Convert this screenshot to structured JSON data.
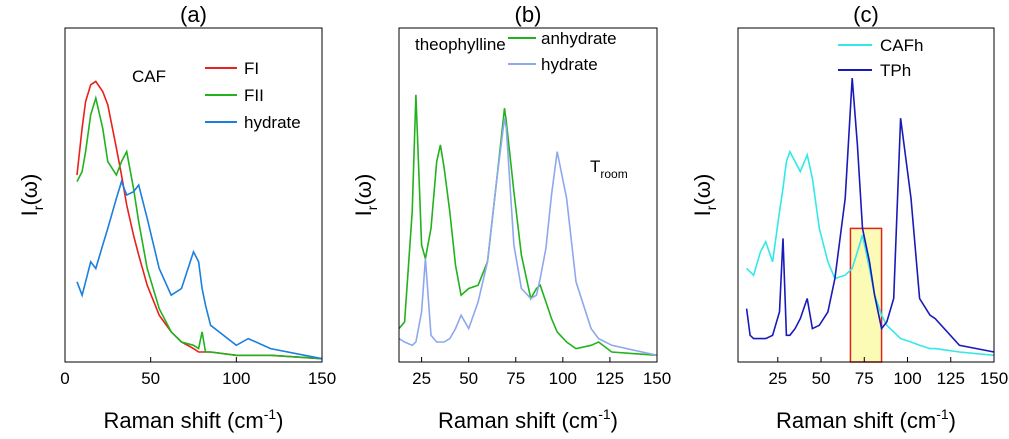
{
  "chart_data": [
    {
      "type": "line",
      "title": "(a)",
      "xlabel": "Raman shift (cm",
      "xlabel_sup": "-1",
      "xlabel_tail": ")",
      "ylabel": "I",
      "ylabel_sub": "r",
      "ylabel_tail": "(ω)",
      "annotation": "CAF",
      "xlim": [
        0,
        150
      ],
      "xticks": [
        0,
        50,
        100,
        150
      ],
      "ylim": [
        0,
        1
      ],
      "x": [
        7,
        10,
        12,
        15,
        18,
        22,
        25,
        30,
        33,
        36,
        40,
        43,
        48,
        55,
        62,
        68,
        75,
        78,
        80,
        82,
        85,
        100,
        107,
        120,
        150
      ],
      "series": [
        {
          "name": "FI",
          "color": "#e8211c",
          "values": [
            0.56,
            0.7,
            0.78,
            0.83,
            0.84,
            0.81,
            0.77,
            0.64,
            0.56,
            0.47,
            0.38,
            0.32,
            0.23,
            0.14,
            0.09,
            0.06,
            0.04,
            0.03,
            0.03,
            0.03,
            0.03,
            0.02,
            0.02,
            0.02,
            0.01
          ]
        },
        {
          "name": "FII",
          "color": "#22b21e",
          "values": [
            0.54,
            0.57,
            0.63,
            0.74,
            0.79,
            0.7,
            0.6,
            0.56,
            0.6,
            0.63,
            0.52,
            0.42,
            0.28,
            0.16,
            0.09,
            0.06,
            0.05,
            0.04,
            0.09,
            0.03,
            0.03,
            0.02,
            0.02,
            0.02,
            0.01
          ]
        },
        {
          "name": "hydrate",
          "color": "#1a7fe0",
          "values": [
            0.24,
            0.2,
            0.24,
            0.3,
            0.28,
            0.35,
            0.4,
            0.49,
            0.54,
            0.5,
            0.51,
            0.53,
            0.43,
            0.28,
            0.2,
            0.22,
            0.33,
            0.3,
            0.22,
            0.17,
            0.11,
            0.05,
            0.07,
            0.04,
            0.01
          ]
        }
      ]
    },
    {
      "type": "line",
      "title": "(b)",
      "xlabel": "Raman shift (cm",
      "xlabel_sup": "-1",
      "xlabel_tail": ")",
      "ylabel": "I",
      "ylabel_sub": "r",
      "ylabel_tail": "(ω)",
      "annotation": "theophylline",
      "temperature_label": "T",
      "temperature_sub": "room",
      "xlim": [
        13,
        150
      ],
      "xticks": [
        25,
        50,
        75,
        100,
        125,
        150
      ],
      "ylim": [
        0,
        1
      ],
      "x": [
        13,
        16,
        20,
        22,
        25,
        27,
        30,
        33,
        35,
        37,
        40,
        43,
        46,
        50,
        55,
        60,
        65,
        69,
        70,
        74,
        78,
        83,
        86,
        88,
        91,
        94,
        97,
        102,
        107,
        115,
        119,
        126,
        150
      ],
      "series": [
        {
          "name": "anhydrate",
          "color": "#22b21e",
          "values": [
            0.1,
            0.12,
            0.45,
            0.8,
            0.35,
            0.31,
            0.4,
            0.6,
            0.65,
            0.58,
            0.45,
            0.29,
            0.2,
            0.22,
            0.23,
            0.3,
            0.55,
            0.76,
            0.72,
            0.51,
            0.32,
            0.19,
            0.22,
            0.23,
            0.18,
            0.13,
            0.09,
            0.06,
            0.04,
            0.05,
            0.06,
            0.03,
            0.02
          ]
        },
        {
          "name": "hydrate",
          "color": "#8ea8ee",
          "values": [
            0.07,
            0.06,
            0.05,
            0.06,
            0.15,
            0.31,
            0.08,
            0.06,
            0.06,
            0.06,
            0.07,
            0.1,
            0.14,
            0.1,
            0.18,
            0.3,
            0.55,
            0.73,
            0.7,
            0.35,
            0.22,
            0.19,
            0.2,
            0.25,
            0.34,
            0.5,
            0.63,
            0.49,
            0.24,
            0.1,
            0.07,
            0.05,
            0.02
          ]
        }
      ]
    },
    {
      "type": "line",
      "title": "(c)",
      "xlabel": "Raman shift (cm",
      "xlabel_sup": "-1",
      "xlabel_tail": ")",
      "ylabel": "I",
      "ylabel_sub": "r",
      "ylabel_tail": "(ω)",
      "xlim": [
        2,
        150
      ],
      "xticks": [
        25,
        50,
        75,
        100,
        125,
        150
      ],
      "ylim": [
        0,
        1
      ],
      "highlight": {
        "x": [
          67,
          85
        ],
        "y": [
          0,
          0.4
        ]
      },
      "x": [
        7,
        9,
        11,
        15,
        18,
        22,
        26,
        28,
        30,
        32,
        35,
        38,
        42,
        45,
        49,
        54,
        58,
        64,
        68,
        71,
        74,
        78,
        81,
        85,
        88,
        92,
        96,
        102,
        107,
        113,
        116,
        130,
        150
      ],
      "series": [
        {
          "name": "CAFh",
          "color": "#33e8e8",
          "values": [
            0.28,
            0.27,
            0.26,
            0.33,
            0.36,
            0.3,
            0.45,
            0.52,
            0.6,
            0.63,
            0.6,
            0.57,
            0.62,
            0.55,
            0.4,
            0.3,
            0.25,
            0.26,
            0.28,
            0.33,
            0.38,
            0.28,
            0.2,
            0.14,
            0.11,
            0.09,
            0.07,
            0.06,
            0.05,
            0.04,
            0.04,
            0.03,
            0.02
          ]
        },
        {
          "name": "TPh",
          "color": "#1a1ab8",
          "values": [
            0.16,
            0.08,
            0.07,
            0.07,
            0.07,
            0.08,
            0.15,
            0.37,
            0.08,
            0.08,
            0.1,
            0.13,
            0.19,
            0.1,
            0.11,
            0.15,
            0.25,
            0.49,
            0.85,
            0.65,
            0.4,
            0.3,
            0.2,
            0.1,
            0.12,
            0.19,
            0.73,
            0.49,
            0.19,
            0.14,
            0.13,
            0.05,
            0.03
          ]
        }
      ]
    }
  ]
}
